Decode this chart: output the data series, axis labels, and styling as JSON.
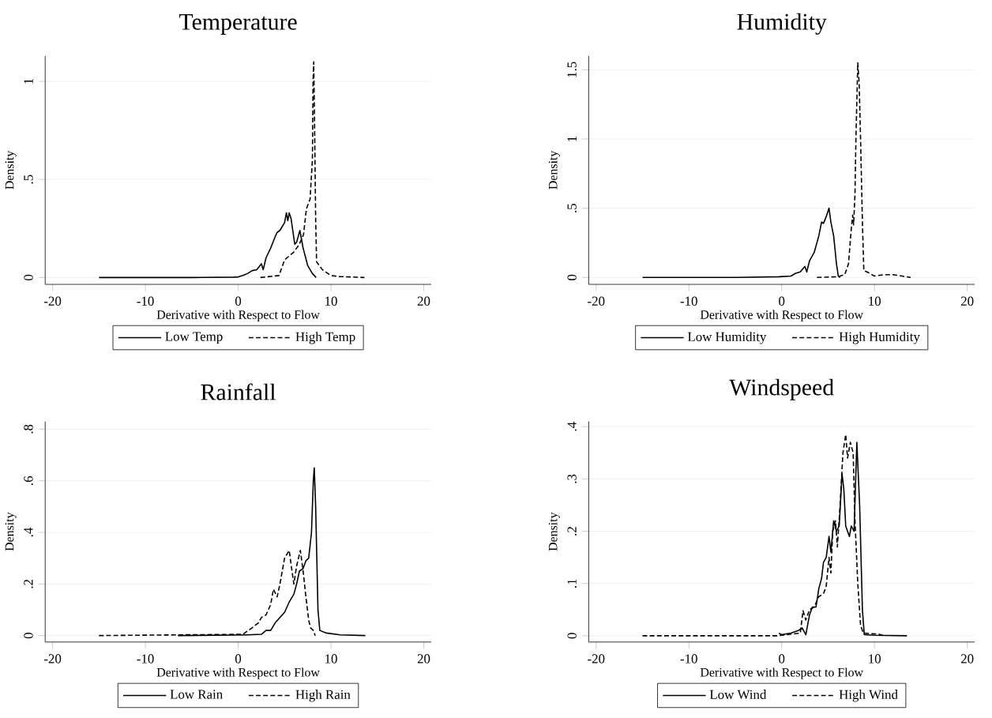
{
  "chart_data": [
    {
      "type": "line",
      "title": "Temperature",
      "xlabel": "Derivative with Respect to Flow",
      "ylabel": "Density",
      "xlim": [
        -20.8,
        20.8
      ],
      "xticks": [
        -20,
        -10,
        0,
        10,
        20
      ],
      "ylim": [
        -0.035,
        1.13
      ],
      "yticks": [
        0,
        {
          "value": 0.5,
          "label": ".5"
        },
        1
      ],
      "grid": "y",
      "legend": "bottom",
      "series": [
        {
          "name": "Low Temp",
          "color": "#000000",
          "line_style": "solid",
          "x": [
            -15,
            -5,
            -0.5,
            0,
            0.5,
            1,
            1.5,
            2,
            2.5,
            2.7,
            3,
            3.5,
            4,
            4.2,
            4.5,
            5,
            5.2,
            5.35,
            5.5,
            5.7,
            6.1,
            6.3,
            6.65,
            7,
            7.5,
            8,
            8.4
          ],
          "values": [
            0,
            0,
            0.002,
            0.003,
            0.01,
            0.02,
            0.035,
            0.04,
            0.07,
            0.04,
            0.1,
            0.15,
            0.21,
            0.23,
            0.24,
            0.28,
            0.33,
            0.29,
            0.33,
            0.3,
            0.17,
            0.18,
            0.24,
            0.15,
            0.06,
            0.02,
            0
          ]
        },
        {
          "name": "High Temp",
          "color": "#000000",
          "line_style": "dashed",
          "x": [
            2.4,
            4.4,
            5.0,
            6.0,
            6.6,
            7.05,
            7.35,
            7.75,
            8.0,
            8.07,
            8.14,
            8.23,
            8.35,
            8.45,
            9.07,
            10,
            10.9,
            13.6
          ],
          "values": [
            0,
            0.01,
            0.09,
            0.13,
            0.17,
            0.22,
            0.35,
            0.4,
            0.6,
            1.0,
            1.1,
            0.8,
            0.3,
            0.08,
            0.04,
            0.01,
            0.005,
            0
          ]
        }
      ]
    },
    {
      "type": "line",
      "title": "Humidity",
      "xlabel": "Derivative with Respect to Flow",
      "ylabel": "Density",
      "xlim": [
        -20.8,
        20.8
      ],
      "xticks": [
        -20,
        -10,
        0,
        10,
        20
      ],
      "ylim": [
        -0.05,
        1.6
      ],
      "yticks": [
        0,
        {
          "value": 0.5,
          "label": ".5"
        },
        1,
        1.5
      ],
      "grid": "y",
      "legend": "bottom",
      "series": [
        {
          "name": "Low Humidity",
          "color": "#000000",
          "line_style": "solid",
          "x": [
            -15,
            -5,
            -0.3,
            1,
            1.5,
            2,
            2.5,
            2.7,
            3,
            3.5,
            4,
            4.3,
            4.5,
            4.8,
            5.1,
            5.3,
            5.6,
            5.9,
            6.1,
            6.3
          ],
          "values": [
            0,
            0,
            0.005,
            0.01,
            0.03,
            0.04,
            0.08,
            0.04,
            0.12,
            0.18,
            0.3,
            0.4,
            0.39,
            0.44,
            0.5,
            0.4,
            0.3,
            0.1,
            0.01,
            0
          ]
        },
        {
          "name": "High Humidity",
          "color": "#000000",
          "line_style": "dashed",
          "x": [
            3.8,
            6,
            6.8,
            7.2,
            7.5,
            7.65,
            7.75,
            7.9,
            8.0,
            8.2,
            8.35,
            8.5,
            8.7,
            8.85,
            9.2,
            10,
            11,
            12,
            13.9
          ],
          "values": [
            0,
            0.005,
            0.02,
            0.1,
            0.35,
            0.45,
            0.38,
            0.6,
            1.0,
            1.55,
            1.4,
            1.0,
            0.4,
            0.05,
            0.04,
            0.01,
            0.02,
            0.02,
            0
          ]
        }
      ]
    },
    {
      "type": "line",
      "title": "Rainfall",
      "xlabel": "Derivative with Respect to Flow",
      "ylabel": "Density",
      "xlim": [
        -20.8,
        20.8
      ],
      "xticks": [
        -20,
        -10,
        0,
        10,
        20
      ],
      "ylim": [
        -0.025,
        0.83
      ],
      "yticks": [
        0,
        {
          "value": 0.2,
          "label": ".2"
        },
        {
          "value": 0.4,
          "label": ".4"
        },
        {
          "value": 0.6,
          "label": ".6"
        },
        {
          "value": 0.8,
          "label": ".8"
        }
      ],
      "grid": "y",
      "legend": "bottom",
      "series": [
        {
          "name": "Low Rain",
          "color": "#000000",
          "line_style": "solid",
          "x": [
            -6.5,
            -0.5,
            1,
            2.5,
            3,
            3.5,
            4,
            4.5,
            5,
            5.5,
            6,
            6.3,
            6.6,
            7,
            7.3,
            7.6,
            7.9,
            8.1,
            8.2,
            8.35,
            8.6,
            8.8,
            9.5,
            11,
            13.7
          ],
          "values": [
            0,
            0.002,
            0.003,
            0.005,
            0.02,
            0.02,
            0.05,
            0.07,
            0.09,
            0.13,
            0.16,
            0.2,
            0.25,
            0.26,
            0.29,
            0.3,
            0.4,
            0.6,
            0.65,
            0.5,
            0.1,
            0.02,
            0.01,
            0.003,
            0
          ]
        },
        {
          "name": "High Rain",
          "color": "#000000",
          "line_style": "dashed",
          "x": [
            -15,
            0.5,
            1.5,
            2.2,
            2.5,
            3,
            3.5,
            3.8,
            4.2,
            4.5,
            5,
            5.5,
            5.8,
            6,
            6.3,
            6.7,
            7,
            7.3,
            7.6,
            7.8,
            8.1,
            8.3
          ],
          "values": [
            0,
            0.005,
            0.03,
            0.05,
            0.07,
            0.08,
            0.12,
            0.18,
            0.15,
            0.2,
            0.3,
            0.33,
            0.25,
            0.2,
            0.27,
            0.33,
            0.25,
            0.15,
            0.06,
            0.03,
            0.02,
            0
          ]
        }
      ]
    },
    {
      "type": "line",
      "title": "Windspeed",
      "xlabel": "Derivative with Respect to Flow",
      "ylabel": "Density",
      "xlim": [
        -20.8,
        20.8
      ],
      "xticks": [
        -20,
        -10,
        0,
        10,
        20
      ],
      "ylim": [
        -0.012,
        0.41
      ],
      "yticks": [
        0,
        {
          "value": 0.1,
          "label": ".1"
        },
        {
          "value": 0.2,
          "label": ".2"
        },
        {
          "value": 0.3,
          "label": ".3"
        },
        {
          "value": 0.4,
          "label": ".4"
        }
      ],
      "grid": "y",
      "legend": "bottom",
      "series": [
        {
          "name": "Low Wind",
          "color": "#000000",
          "line_style": "solid",
          "x": [
            -0.3,
            0,
            1,
            1.8,
            2.2,
            2.6,
            3,
            3.3,
            3.7,
            4,
            4.3,
            4.5,
            4.8,
            5.1,
            5.3,
            5.6,
            5.9,
            6.2,
            6.5,
            6.7,
            6.9,
            7.3,
            7.5,
            7.8,
            8.1,
            8.4,
            8.7,
            8.9,
            10,
            13.5
          ],
          "values": [
            0.005,
            0.002,
            0.005,
            0.01,
            0.015,
            0.002,
            0.04,
            0.055,
            0.055,
            0.09,
            0.11,
            0.14,
            0.15,
            0.19,
            0.16,
            0.22,
            0.2,
            0.21,
            0.31,
            0.28,
            0.21,
            0.19,
            0.21,
            0.2,
            0.37,
            0.25,
            0.05,
            0.002,
            0.001,
            0
          ]
        },
        {
          "name": "High Wind",
          "color": "#000000",
          "line_style": "dashed",
          "x": [
            -15,
            -0.5,
            2,
            2.3,
            2.6,
            3,
            3.5,
            4,
            4.5,
            4.8,
            5.1,
            5.3,
            5.5,
            5.8,
            6,
            6.3,
            6.6,
            6.9,
            7.1,
            7.4,
            7.7,
            7.9,
            8.2,
            8.5,
            8.8,
            10.5,
            11
          ],
          "values": [
            0,
            0,
            0.005,
            0.048,
            0.03,
            0.05,
            0.055,
            0.075,
            0.08,
            0.095,
            0.15,
            0.12,
            0.2,
            0.22,
            0.17,
            0.25,
            0.35,
            0.385,
            0.34,
            0.37,
            0.35,
            0.22,
            0.1,
            0.02,
            0.005,
            0.003,
            0
          ]
        }
      ]
    }
  ]
}
